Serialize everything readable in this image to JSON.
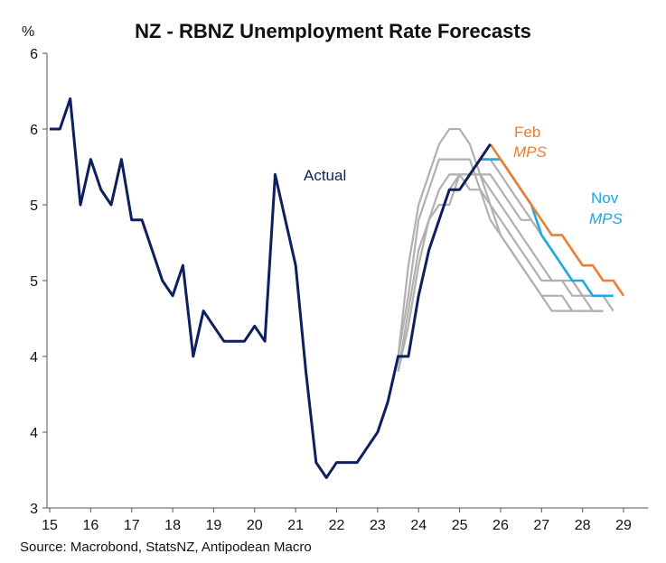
{
  "chart_data": {
    "type": "line",
    "title": "NZ - RBNZ Unemployment Rate Forecasts",
    "ylabel": "%",
    "source": "Source: Macrobond, StatsNZ, Antipodean Macro",
    "xlim": [
      15,
      29.6
    ],
    "ylim": [
      3.0,
      6.0
    ],
    "grid": false,
    "x_ticks": [
      15,
      16,
      17,
      18,
      19,
      20,
      21,
      22,
      23,
      24,
      25,
      26,
      27,
      28,
      29
    ],
    "x_tick_labels": [
      "15",
      "16",
      "17",
      "18",
      "19",
      "20",
      "21",
      "22",
      "23",
      "24",
      "25",
      "26",
      "27",
      "28",
      "29"
    ],
    "y_ticks": [
      3.0,
      3.5,
      4.0,
      4.5,
      5.0,
      5.5,
      6.0
    ],
    "y_tick_labels": [
      "3",
      "4",
      "4",
      "5",
      "5",
      "6",
      "6"
    ],
    "annotations": [
      {
        "text": "Actual",
        "color": "#0d1f5c",
        "italic": false
      },
      {
        "text": "Feb",
        "color": "#ed7d31",
        "italic": false
      },
      {
        "text": "MPS",
        "color": "#ed7d31",
        "italic": true
      },
      {
        "text": "Nov",
        "color": "#1ca8e3",
        "italic": false
      },
      {
        "text": "MPS",
        "color": "#1ca8e3",
        "italic": true
      }
    ],
    "series": [
      {
        "role": "past-forecast",
        "color": "#b0b0b0",
        "x": [
          23.5,
          23.75,
          24,
          24.25,
          24.5,
          24.75,
          25,
          25.25,
          25.5,
          25.75,
          26,
          26.25,
          26.5,
          26.75,
          27,
          27.25,
          27.5,
          27.75,
          28,
          28.25,
          28.5
        ],
        "y": [
          4.0,
          4.6,
          5.0,
          5.2,
          5.4,
          5.5,
          5.5,
          5.4,
          5.2,
          5.0,
          4.8,
          4.7,
          4.6,
          4.5,
          4.4,
          4.3,
          4.3,
          4.3,
          4.3,
          4.3,
          4.3
        ]
      },
      {
        "role": "past-forecast",
        "color": "#b0b0b0",
        "x": [
          23.5,
          23.75,
          24,
          24.25,
          24.5,
          24.75,
          25,
          25.25,
          25.5,
          25.75,
          26,
          26.25,
          26.5,
          26.75,
          27,
          27.25,
          27.5,
          27.75,
          28,
          28.25,
          28.5
        ],
        "y": [
          4.0,
          4.4,
          4.9,
          5.1,
          5.3,
          5.3,
          5.3,
          5.3,
          5.1,
          4.9,
          4.8,
          4.7,
          4.6,
          4.5,
          4.4,
          4.4,
          4.4,
          4.3,
          4.3,
          4.3,
          4.3
        ]
      },
      {
        "role": "past-forecast",
        "color": "#b0b0b0",
        "x": [
          23.5,
          23.75,
          24,
          24.25,
          24.5,
          24.75,
          25,
          25.25,
          25.5,
          25.75,
          26,
          26.25,
          26.5,
          26.75,
          27,
          27.25,
          27.5,
          27.75
        ],
        "y": [
          3.9,
          4.3,
          4.7,
          4.9,
          5.1,
          5.2,
          5.2,
          5.1,
          5.1,
          5.0,
          4.9,
          4.8,
          4.7,
          4.6,
          4.5,
          4.5,
          4.5,
          4.5
        ]
      },
      {
        "role": "past-forecast",
        "color": "#b0b0b0",
        "x": [
          23.5,
          23.75,
          24,
          24.25,
          24.5,
          24.75,
          25,
          25.25,
          25.5,
          25.75,
          26,
          26.25,
          26.5,
          26.75,
          27,
          27.25,
          27.5,
          27.75,
          28,
          28.25,
          28.5
        ],
        "y": [
          3.9,
          4.2,
          4.6,
          4.9,
          5.0,
          5.0,
          5.2,
          5.2,
          5.2,
          5.1,
          5.0,
          4.9,
          4.8,
          4.7,
          4.6,
          4.5,
          4.5,
          4.4,
          4.4,
          4.3,
          4.3
        ]
      },
      {
        "role": "past-forecast",
        "color": "#b0b0b0",
        "x": [
          23.75,
          24,
          24.25,
          24.5,
          24.75,
          25,
          25.25,
          25.5,
          25.75,
          26,
          26.25,
          26.5,
          26.75,
          27,
          27.25,
          27.5,
          27.75,
          28,
          28.25,
          28.5,
          28.75
        ],
        "y": [
          4.0,
          4.4,
          4.7,
          4.9,
          5.1,
          5.2,
          5.2,
          5.2,
          5.2,
          5.1,
          5.0,
          4.9,
          4.9,
          4.8,
          4.7,
          4.6,
          4.5,
          4.4,
          4.4,
          4.4,
          4.3
        ]
      },
      {
        "role": "past-forecast",
        "color": "#b0b0b0",
        "x": [
          25.5,
          25.75,
          26,
          26.25,
          26.5,
          26.75,
          27,
          27.25,
          27.5,
          27.75,
          28,
          28.25
        ],
        "y": [
          5.3,
          5.3,
          5.2,
          5.1,
          5.0,
          4.9,
          4.8,
          4.7,
          4.6,
          4.5,
          4.4,
          4.4
        ]
      },
      {
        "name": "Nov MPS",
        "color": "#1ca8e3",
        "x": [
          25.5,
          25.75,
          26,
          26.25,
          26.5,
          26.75,
          27,
          27.25,
          27.5,
          27.75,
          28,
          28.25,
          28.5,
          28.75
        ],
        "y": [
          5.3,
          5.3,
          5.3,
          5.2,
          5.1,
          5.0,
          4.8,
          4.7,
          4.6,
          4.5,
          4.5,
          4.4,
          4.4,
          4.4
        ]
      },
      {
        "name": "Feb MPS",
        "color": "#ed7d31",
        "x": [
          25.75,
          26,
          26.25,
          26.5,
          26.75,
          27,
          27.25,
          27.5,
          27.75,
          28,
          28.25,
          28.5,
          28.75,
          29
        ],
        "y": [
          5.4,
          5.3,
          5.2,
          5.1,
          5.0,
          4.9,
          4.8,
          4.8,
          4.7,
          4.6,
          4.6,
          4.5,
          4.5,
          4.4
        ]
      },
      {
        "name": "Actual",
        "color": "#0d1f5c",
        "x": [
          15,
          15.25,
          15.5,
          15.75,
          16,
          16.25,
          16.5,
          16.75,
          17,
          17.25,
          17.5,
          17.75,
          18,
          18.25,
          18.5,
          18.75,
          19,
          19.25,
          19.5,
          19.75,
          20,
          20.25,
          20.5,
          20.75,
          21,
          21.25,
          21.5,
          21.75,
          22,
          22.25,
          22.5,
          22.75,
          23,
          23.25,
          23.5,
          23.75,
          24,
          24.25,
          24.5,
          24.75,
          25,
          25.25,
          25.5,
          25.75
        ],
        "y": [
          5.5,
          5.5,
          5.7,
          5.0,
          5.3,
          5.1,
          5.0,
          5.3,
          4.9,
          4.9,
          4.7,
          4.5,
          4.4,
          4.6,
          4.0,
          4.3,
          4.2,
          4.1,
          4.1,
          4.1,
          4.2,
          4.1,
          5.2,
          4.9,
          4.6,
          3.9,
          3.3,
          3.2,
          3.3,
          3.3,
          3.3,
          3.4,
          3.5,
          3.7,
          4.0,
          4.0,
          4.4,
          4.7,
          4.9,
          5.1,
          5.1,
          5.2,
          5.3,
          5.4
        ]
      }
    ]
  }
}
